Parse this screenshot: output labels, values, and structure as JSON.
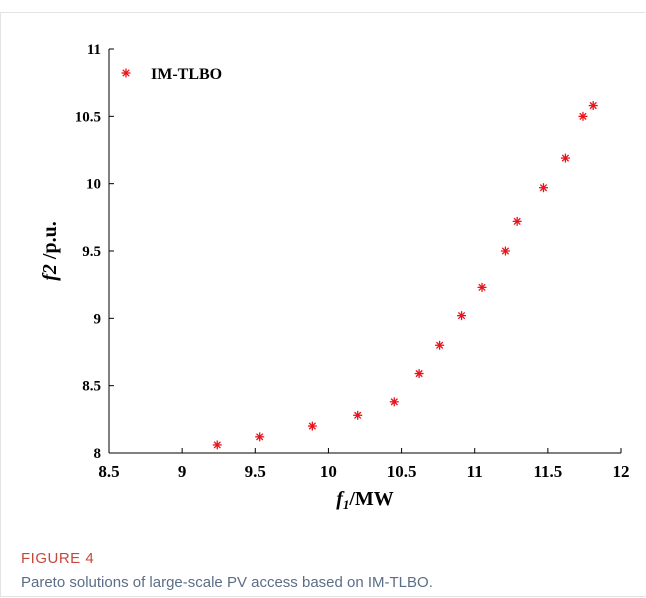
{
  "chart_data": {
    "type": "scatter",
    "xlim": [
      8.5,
      12
    ],
    "ylim": [
      8,
      11
    ],
    "xticks": [
      "8.5",
      "9",
      "9.5",
      "10",
      "10.5",
      "11",
      "11.5",
      "12"
    ],
    "yticks": [
      "8",
      "8.5",
      "9",
      "9.5",
      "10",
      "10.5",
      "11"
    ],
    "xlabel_main": "f",
    "xlabel_sub": "1",
    "xlabel_unit": "/MW",
    "ylabel_main": "f2",
    "ylabel_unit": " /p.u.",
    "series": [
      {
        "name": "IM-TLBO",
        "color": "#e8141c",
        "marker": "*",
        "points": [
          [
            9.24,
            8.06
          ],
          [
            9.53,
            8.12
          ],
          [
            9.89,
            8.2
          ],
          [
            10.2,
            8.28
          ],
          [
            10.45,
            8.38
          ],
          [
            10.62,
            8.59
          ],
          [
            10.76,
            8.8
          ],
          [
            10.91,
            9.02
          ],
          [
            11.05,
            9.23
          ],
          [
            11.21,
            9.5
          ],
          [
            11.29,
            9.72
          ],
          [
            11.47,
            9.97
          ],
          [
            11.62,
            10.19
          ],
          [
            11.74,
            10.5
          ],
          [
            11.81,
            10.58
          ]
        ]
      }
    ],
    "legend": "top-left",
    "grid": false
  },
  "figure": {
    "label": "FIGURE 4",
    "caption": "Pareto solutions of large-scale PV access based on IM-TLBO."
  }
}
